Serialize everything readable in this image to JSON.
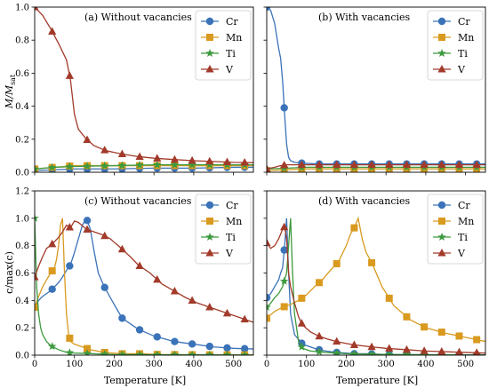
{
  "figure": {
    "ylabel_top": "M/M_sat",
    "ylabel_bottom": "c/max(c)",
    "xlabel": "Temperature [K]"
  },
  "series_styles": [
    {
      "name": "Cr",
      "color": "#3B73B9",
      "marker": "circle"
    },
    {
      "name": "Mn",
      "color": "#D99A1F",
      "marker": "square"
    },
    {
      "name": "Ti",
      "color": "#3E9A3E",
      "marker": "star"
    },
    {
      "name": "V",
      "color": "#A23A2A",
      "marker": "triangle"
    }
  ],
  "chart_data": [
    {
      "type": "line",
      "title": "(a) Without vacancies",
      "xlim": [
        0,
        550
      ],
      "ylim": [
        0,
        1.0
      ],
      "xticks": [
        0,
        100,
        200,
        300,
        400,
        500
      ],
      "yticks": [
        0.0,
        0.2,
        0.4,
        0.6,
        0.8,
        1.0
      ],
      "legend_position": "top-right",
      "series": [
        {
          "name": "Cr",
          "x": [
            0,
            100,
            200,
            300,
            400,
            500,
            550
          ],
          "y": [
            0.01,
            0.02,
            0.02,
            0.025,
            0.025,
            0.03,
            0.03
          ]
        },
        {
          "name": "Mn",
          "x": [
            0,
            50,
            100,
            150,
            200,
            300,
            400,
            500,
            550
          ],
          "y": [
            0.02,
            0.03,
            0.04,
            0.04,
            0.04,
            0.04,
            0.04,
            0.04,
            0.04
          ]
        },
        {
          "name": "Ti",
          "x": [
            0,
            50,
            100,
            200,
            300,
            400,
            500,
            550
          ],
          "y": [
            0.02,
            0.03,
            0.035,
            0.04,
            0.045,
            0.045,
            0.045,
            0.045
          ]
        },
        {
          "name": "V",
          "x": [
            0,
            20,
            40,
            60,
            80,
            90,
            100,
            110,
            130,
            150,
            180,
            220,
            260,
            300,
            350,
            400,
            450,
            500,
            550
          ],
          "y": [
            1.0,
            0.95,
            0.87,
            0.78,
            0.68,
            0.56,
            0.35,
            0.26,
            0.2,
            0.16,
            0.13,
            0.11,
            0.095,
            0.085,
            0.077,
            0.07,
            0.065,
            0.06,
            0.058
          ]
        }
      ]
    },
    {
      "type": "line",
      "title": "(b) With vacancies",
      "xlim": [
        0,
        550
      ],
      "ylim": [
        0,
        1.0
      ],
      "xticks": [
        0,
        100,
        200,
        300,
        400,
        500
      ],
      "yticks": [
        0.0,
        0.2,
        0.4,
        0.6,
        0.8,
        1.0
      ],
      "legend_position": "top-right",
      "series": [
        {
          "name": "Cr",
          "x": [
            0,
            10,
            20,
            30,
            35,
            40,
            45,
            50,
            55,
            60,
            70,
            90,
            130,
            175,
            220,
            265,
            400,
            550
          ],
          "y": [
            1.0,
            0.98,
            0.9,
            0.75,
            0.69,
            0.55,
            0.35,
            0.17,
            0.09,
            0.07,
            0.06,
            0.055,
            0.05,
            0.05,
            0.05,
            0.05,
            0.05,
            0.05
          ]
        },
        {
          "name": "Mn",
          "x": [
            0,
            50,
            100,
            200,
            300,
            400,
            500,
            550
          ],
          "y": [
            0.01,
            0.015,
            0.02,
            0.02,
            0.02,
            0.02,
            0.02,
            0.02
          ]
        },
        {
          "name": "Ti",
          "x": [
            0,
            50,
            100,
            200,
            300,
            400,
            500,
            550
          ],
          "y": [
            0.02,
            0.025,
            0.03,
            0.03,
            0.03,
            0.03,
            0.03,
            0.03
          ]
        },
        {
          "name": "V",
          "x": [
            0,
            20,
            35,
            50,
            70,
            90,
            130,
            175,
            220,
            265,
            350,
            450,
            550
          ],
          "y": [
            0.02,
            0.03,
            0.04,
            0.045,
            0.045,
            0.045,
            0.045,
            0.045,
            0.045,
            0.045,
            0.045,
            0.045,
            0.045
          ]
        }
      ]
    },
    {
      "type": "line",
      "title": "(c) Without vacancies",
      "xlim": [
        0,
        550
      ],
      "ylim": [
        0,
        1.2
      ],
      "xticks": [
        0,
        100,
        200,
        300,
        400,
        500
      ],
      "yticks": [
        0.0,
        0.2,
        0.4,
        0.6,
        0.8,
        1.0,
        1.2
      ],
      "legend_position": "top-right",
      "series": [
        {
          "name": "Cr",
          "x": [
            0,
            10,
            20,
            30,
            40,
            50,
            60,
            70,
            80,
            90,
            100,
            110,
            120,
            130,
            140,
            150,
            160,
            175,
            200,
            220,
            260,
            300,
            350,
            400,
            450,
            500,
            550
          ],
          "y": [
            0.35,
            0.4,
            0.43,
            0.45,
            0.47,
            0.5,
            0.53,
            0.57,
            0.62,
            0.66,
            0.75,
            0.85,
            0.95,
            1.0,
            0.92,
            0.75,
            0.6,
            0.5,
            0.37,
            0.27,
            0.19,
            0.14,
            0.1,
            0.08,
            0.06,
            0.05,
            0.045
          ]
        },
        {
          "name": "Mn",
          "x": [
            0,
            10,
            20,
            30,
            40,
            50,
            55,
            60,
            65,
            70,
            75,
            80,
            85,
            90,
            100,
            120,
            140,
            175,
            220,
            265,
            310,
            400,
            550
          ],
          "y": [
            0.35,
            0.43,
            0.5,
            0.55,
            0.6,
            0.64,
            0.7,
            0.8,
            0.95,
            1.0,
            0.6,
            0.3,
            0.16,
            0.1,
            0.08,
            0.06,
            0.04,
            0.02,
            0.01,
            0.01,
            0.005,
            0.003,
            0.002
          ]
        },
        {
          "name": "Ti",
          "x": [
            0,
            5,
            10,
            15,
            20,
            30,
            40,
            60,
            80,
            100,
            150,
            200,
            300,
            400,
            550
          ],
          "y": [
            1.0,
            0.5,
            0.3,
            0.2,
            0.15,
            0.1,
            0.07,
            0.04,
            0.02,
            0.015,
            0.01,
            0.005,
            0.003,
            0.002,
            0.001
          ]
        },
        {
          "name": "V",
          "x": [
            0,
            10,
            20,
            30,
            40,
            50,
            60,
            70,
            80,
            90,
            100,
            110,
            130,
            150,
            170,
            190,
            210,
            240,
            260,
            290,
            320,
            350,
            380,
            410,
            440,
            470,
            500,
            530,
            550
          ],
          "y": [
            0.57,
            0.65,
            0.72,
            0.78,
            0.8,
            0.83,
            0.86,
            0.9,
            0.95,
            0.93,
            0.98,
            0.97,
            0.92,
            0.9,
            0.88,
            0.85,
            0.8,
            0.72,
            0.66,
            0.6,
            0.52,
            0.47,
            0.42,
            0.38,
            0.35,
            0.32,
            0.29,
            0.26,
            0.24
          ]
        }
      ]
    },
    {
      "type": "line",
      "title": "(d) With vacancies",
      "xlim": [
        0,
        550
      ],
      "ylim": [
        0,
        1.2
      ],
      "xticks": [
        0,
        100,
        200,
        300,
        400,
        500
      ],
      "yticks": [
        0.0,
        0.2,
        0.4,
        0.6,
        0.8,
        1.0,
        1.2
      ],
      "legend_position": "top-right",
      "series": [
        {
          "name": "Cr",
          "x": [
            0,
            10,
            20,
            30,
            35,
            40,
            45,
            50,
            55,
            60,
            70,
            90,
            110,
            130,
            150,
            175,
            200,
            220,
            250,
            300,
            400,
            550
          ],
          "y": [
            0.42,
            0.45,
            0.5,
            0.55,
            0.6,
            0.64,
            0.8,
            1.0,
            0.6,
            0.3,
            0.15,
            0.08,
            0.06,
            0.04,
            0.03,
            0.02,
            0.015,
            0.01,
            0.01,
            0.005,
            0.003,
            0.002
          ]
        },
        {
          "name": "Mn",
          "x": [
            0,
            20,
            40,
            60,
            80,
            100,
            120,
            140,
            160,
            180,
            200,
            210,
            220,
            230,
            240,
            250,
            265,
            290,
            320,
            360,
            400,
            450,
            500,
            550
          ],
          "y": [
            0.27,
            0.32,
            0.35,
            0.37,
            0.4,
            0.44,
            0.5,
            0.55,
            0.62,
            0.68,
            0.8,
            0.88,
            0.93,
            1.0,
            0.85,
            0.75,
            0.67,
            0.5,
            0.36,
            0.26,
            0.2,
            0.16,
            0.13,
            0.1
          ]
        },
        {
          "name": "Ti",
          "x": [
            0,
            10,
            20,
            30,
            40,
            50,
            55,
            60,
            65,
            70,
            80,
            90,
            110,
            150,
            200,
            300,
            550
          ],
          "y": [
            0.35,
            0.38,
            0.42,
            0.45,
            0.5,
            0.6,
            0.8,
            1.0,
            0.6,
            0.3,
            0.1,
            0.05,
            0.03,
            0.02,
            0.01,
            0.005,
            0.001
          ]
        },
        {
          "name": "V",
          "x": [
            0,
            10,
            20,
            30,
            40,
            45,
            50,
            55,
            60,
            70,
            80,
            90,
            110,
            130,
            150,
            175,
            200,
            220,
            250,
            265,
            300,
            350,
            400,
            450,
            500,
            550
          ],
          "y": [
            0.82,
            0.78,
            0.8,
            0.85,
            0.92,
            0.94,
            0.85,
            0.6,
            0.5,
            0.38,
            0.28,
            0.22,
            0.17,
            0.14,
            0.12,
            0.1,
            0.085,
            0.075,
            0.065,
            0.06,
            0.05,
            0.04,
            0.03,
            0.025,
            0.02,
            0.015
          ]
        }
      ]
    }
  ]
}
